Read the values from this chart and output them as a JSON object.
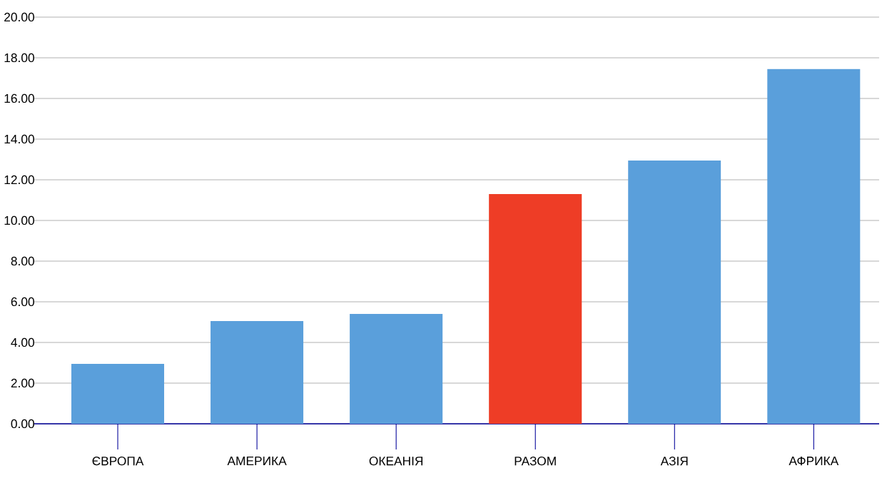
{
  "chart_data": {
    "type": "bar",
    "categories": [
      "ЄВРОПА",
      "АМЕРИКА",
      "ОКЕАНІЯ",
      "РАЗОМ",
      "АЗІЯ",
      "АФРИКА"
    ],
    "values": [
      2.95,
      5.05,
      5.4,
      11.3,
      12.95,
      17.45
    ],
    "colors": [
      "#5a9fdb",
      "#5a9fdb",
      "#5a9fdb",
      "#ee3d26",
      "#5a9fdb",
      "#5a9fdb"
    ],
    "ylim": [
      0,
      20
    ],
    "yticks": [
      {
        "value": 0,
        "label": "0.00"
      },
      {
        "value": 2,
        "label": "2.00"
      },
      {
        "value": 4,
        "label": "4.00"
      },
      {
        "value": 6,
        "label": "6.00"
      },
      {
        "value": 8,
        "label": "8.00"
      },
      {
        "value": 10,
        "label": "10.00"
      },
      {
        "value": 12,
        "label": "12.00"
      },
      {
        "value": 14,
        "label": "14.00"
      },
      {
        "value": 16,
        "label": "16.00"
      },
      {
        "value": 18,
        "label": "18.00"
      },
      {
        "value": 20,
        "label": "20.00"
      }
    ],
    "grid": "y"
  }
}
